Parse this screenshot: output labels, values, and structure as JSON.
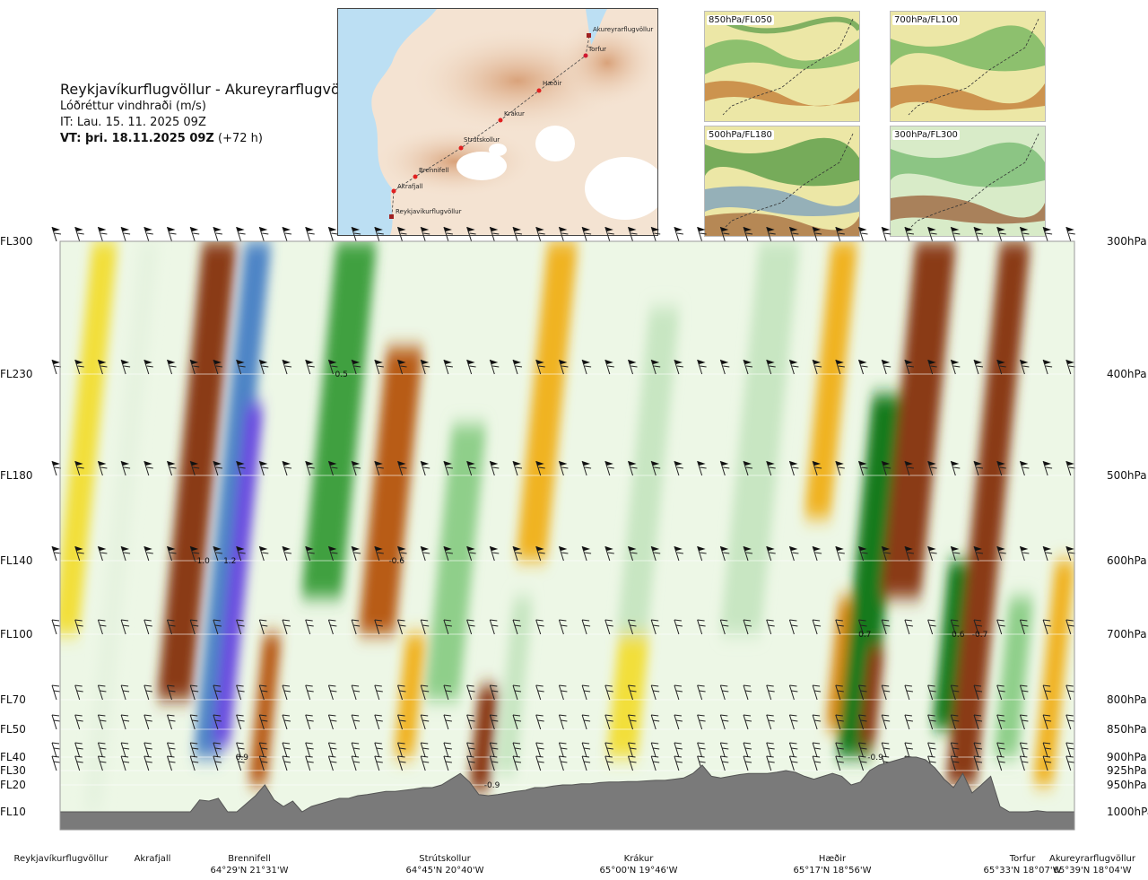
{
  "header": {
    "route": "Reykjavíkurflugvöllur - Akureyrarflugvöllur",
    "variable": "Lóðréttur vindhraði (m/s)",
    "issue_time": "IT: Lau. 15. 11. 2025 09Z",
    "valid_prefix": "VT: þri. 18.11.2025 09Z",
    "valid_suffix": "(+72 h)"
  },
  "map": {
    "points": [
      {
        "name": "Akureyrarflugvöllur"
      },
      {
        "name": "Torfur"
      },
      {
        "name": "Hæðir"
      },
      {
        "name": "Krákur"
      },
      {
        "name": "Strútskollur"
      },
      {
        "name": "Brennifell"
      },
      {
        "name": "Akrafjall"
      },
      {
        "name": "Reykjavíkurflugvöllur"
      }
    ]
  },
  "thumbnails": [
    {
      "label": "850hPa/FL050"
    },
    {
      "label": "700hPa/FL100"
    },
    {
      "label": "500hPa/FL180"
    },
    {
      "label": "300hPa/FL300"
    }
  ],
  "chart_data": {
    "type": "heatmap",
    "title": "Lóðréttur vindhraði (m/s)",
    "left_axis_labels": [
      "FL300",
      "FL230",
      "FL180",
      "FL140",
      "FL100",
      "FL70",
      "FL50",
      "FL40",
      "FL30",
      "FL20",
      "FL10"
    ],
    "right_axis_labels": [
      "300hPa",
      "400hPa",
      "500hPa",
      "600hPa",
      "700hPa",
      "800hPa",
      "850hPa",
      "900hPa",
      "925hPa",
      "950hPa",
      "1000hPa"
    ],
    "pressure_levels_hpa": [
      300,
      400,
      500,
      600,
      700,
      800,
      850,
      900,
      925,
      950,
      1000
    ],
    "waypoints": [
      {
        "name": "Reykjavíkurflugvöllur",
        "coord": ""
      },
      {
        "name": "Akrafjall",
        "coord": ""
      },
      {
        "name": "Brennifell",
        "coord": "64°29'N 21°31'W"
      },
      {
        "name": "Strútskollur",
        "coord": "64°45'N 20°40'W"
      },
      {
        "name": "Krákur",
        "coord": "65°00'N 19°46'W"
      },
      {
        "name": "Hæðir",
        "coord": "65°17'N 18°56'W"
      },
      {
        "name": "Torfur",
        "coord": "65°33'N 18°07'W"
      },
      {
        "name": "Akureyrarflugvöllur",
        "coord": "65°39'N 18°04'W"
      }
    ],
    "value_labels": [
      {
        "text": "0.5",
        "frac_x": 0.271,
        "level_hpa": 400
      },
      {
        "text": "-1.0",
        "frac_x": 0.132,
        "level_hpa": 600
      },
      {
        "text": "1.2",
        "frac_x": 0.161,
        "level_hpa": 600
      },
      {
        "text": "-0.6",
        "frac_x": 0.324,
        "level_hpa": 600
      },
      {
        "text": "0.7",
        "frac_x": 0.787,
        "level_hpa": 700
      },
      {
        "text": "0.6",
        "frac_x": 0.879,
        "level_hpa": 700
      },
      {
        "text": "-0.7",
        "frac_x": 0.899,
        "level_hpa": 700
      },
      {
        "text": "0.9",
        "frac_x": 0.173,
        "level_hpa": 900
      },
      {
        "text": "-0.9",
        "frac_x": 0.796,
        "level_hpa": 900
      },
      {
        "text": "-0.9",
        "frac_x": 0.418,
        "level_hpa": 950
      }
    ],
    "bands": [
      {
        "frac_x": 0.025,
        "width": 0.025,
        "value": -0.2,
        "top_hpa": 300,
        "bottom_hpa": 700
      },
      {
        "frac_x": 0.06,
        "width": 0.02,
        "value": 0.15,
        "top_hpa": 300,
        "bottom_hpa": 1000
      },
      {
        "frac_x": 0.135,
        "width": 0.034,
        "value": -0.8,
        "top_hpa": 300,
        "bottom_hpa": 800
      },
      {
        "frac_x": 0.17,
        "width": 0.026,
        "value": 1.0,
        "top_hpa": 300,
        "bottom_hpa": 900
      },
      {
        "frac_x": 0.175,
        "width": 0.018,
        "value": 1.3,
        "top_hpa": 430,
        "bottom_hpa": 880
      },
      {
        "frac_x": 0.202,
        "width": 0.018,
        "value": -0.6,
        "top_hpa": 700,
        "bottom_hpa": 950
      },
      {
        "frac_x": 0.275,
        "width": 0.04,
        "value": 0.7,
        "top_hpa": 300,
        "bottom_hpa": 650
      },
      {
        "frac_x": 0.326,
        "width": 0.036,
        "value": -0.6,
        "top_hpa": 380,
        "bottom_hpa": 700
      },
      {
        "frac_x": 0.345,
        "width": 0.02,
        "value": -0.3,
        "top_hpa": 700,
        "bottom_hpa": 900
      },
      {
        "frac_x": 0.39,
        "width": 0.034,
        "value": 0.4,
        "top_hpa": 450,
        "bottom_hpa": 800
      },
      {
        "frac_x": 0.418,
        "width": 0.02,
        "value": -0.8,
        "top_hpa": 780,
        "bottom_hpa": 960
      },
      {
        "frac_x": 0.448,
        "width": 0.02,
        "value": 0.35,
        "top_hpa": 650,
        "bottom_hpa": 930
      },
      {
        "frac_x": 0.48,
        "width": 0.03,
        "value": -0.3,
        "top_hpa": 300,
        "bottom_hpa": 600
      },
      {
        "frac_x": 0.56,
        "width": 0.03,
        "value": -0.2,
        "top_hpa": 700,
        "bottom_hpa": 900
      },
      {
        "frac_x": 0.58,
        "width": 0.03,
        "value": 0.3,
        "top_hpa": 350,
        "bottom_hpa": 700
      },
      {
        "frac_x": 0.69,
        "width": 0.04,
        "value": 0.3,
        "top_hpa": 300,
        "bottom_hpa": 700
      },
      {
        "frac_x": 0.76,
        "width": 0.026,
        "value": -0.4,
        "top_hpa": 300,
        "bottom_hpa": 550
      },
      {
        "frac_x": 0.77,
        "width": 0.018,
        "value": -0.5,
        "top_hpa": 650,
        "bottom_hpa": 850
      },
      {
        "frac_x": 0.8,
        "width": 0.034,
        "value": 0.9,
        "top_hpa": 420,
        "bottom_hpa": 900
      },
      {
        "frac_x": 0.8,
        "width": 0.016,
        "value": -0.8,
        "top_hpa": 720,
        "bottom_hpa": 880
      },
      {
        "frac_x": 0.846,
        "width": 0.04,
        "value": -0.8,
        "top_hpa": 300,
        "bottom_hpa": 650
      },
      {
        "frac_x": 0.88,
        "width": 0.024,
        "value": 0.8,
        "top_hpa": 600,
        "bottom_hpa": 850
      },
      {
        "frac_x": 0.915,
        "width": 0.03,
        "value": -0.8,
        "top_hpa": 300,
        "bottom_hpa": 950
      },
      {
        "frac_x": 0.94,
        "width": 0.024,
        "value": 0.4,
        "top_hpa": 650,
        "bottom_hpa": 900
      },
      {
        "frac_x": 0.98,
        "width": 0.02,
        "value": -0.3,
        "top_hpa": 600,
        "bottom_hpa": 950
      }
    ],
    "color_scale": {
      "negative": [
        "#f7f3a8",
        "#f2df3a",
        "#f0b320",
        "#d98a18",
        "#b85c14",
        "#8a3a12"
      ],
      "positive": [
        "#e6f3e0",
        "#c8e6c2",
        "#8fcf8a",
        "#3fa040",
        "#157a1c",
        "#4e84c6",
        "#6a4ee0"
      ]
    },
    "terrain_profile_hpa": [
      1000,
      1000,
      1000,
      1000,
      1000,
      1000,
      1000,
      1000,
      1000,
      1000,
      1000,
      1000,
      1000,
      1000,
      1000,
      978,
      980,
      975,
      1000,
      1000,
      985,
      970,
      950,
      978,
      990,
      980,
      1000,
      990,
      985,
      980,
      975,
      975,
      970,
      968,
      965,
      962,
      962,
      960,
      958,
      955,
      955,
      950,
      940,
      930,
      945,
      968,
      970,
      968,
      965,
      962,
      960,
      955,
      955,
      952,
      950,
      950,
      948,
      948,
      946,
      945,
      945,
      944,
      944,
      943,
      942,
      942,
      940,
      938,
      930,
      915,
      935,
      938,
      935,
      932,
      930,
      930,
      930,
      928,
      925,
      928,
      935,
      940,
      935,
      930,
      935,
      950,
      945,
      925,
      915,
      910,
      905,
      900,
      900,
      905,
      920,
      940,
      955,
      930,
      965,
      950,
      935,
      990,
      1000,
      1000,
      1000,
      998,
      1000,
      1000,
      1000,
      1000
    ]
  }
}
